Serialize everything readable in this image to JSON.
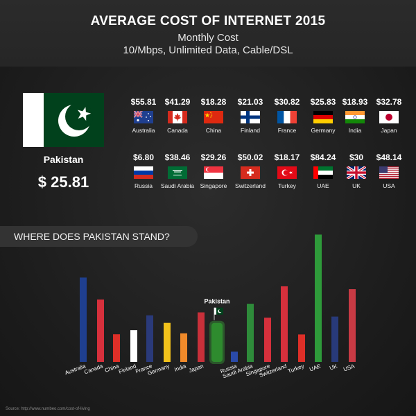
{
  "header": {
    "title": "AVERAGE COST OF INTERNET 2015",
    "subtitle": "Monthly Cost",
    "subtitle2": "10/Mbps, Unlimited Data, Cable/DSL"
  },
  "highlight": {
    "country": "Pakistan",
    "price": "$ 25.81"
  },
  "countries_row1": [
    {
      "name": "Australia",
      "price": "$55.81"
    },
    {
      "name": "Canada",
      "price": "$41.29"
    },
    {
      "name": "China",
      "price": "$18.28"
    },
    {
      "name": "Finland",
      "price": "$21.03"
    },
    {
      "name": "France",
      "price": "$30.82"
    },
    {
      "name": "Germany",
      "price": "$25.83"
    },
    {
      "name": "India",
      "price": "$18.93"
    },
    {
      "name": "Japan",
      "price": "$32.78"
    }
  ],
  "countries_row2": [
    {
      "name": "Russia",
      "price": "$6.80"
    },
    {
      "name": "Saudi Arabia",
      "price": "$38.46"
    },
    {
      "name": "Singapore",
      "price": "$29.26"
    },
    {
      "name": "Switzerland",
      "price": "$50.02"
    },
    {
      "name": "Turkey",
      "price": "$18.17"
    },
    {
      "name": "UAE",
      "price": "$84.24"
    },
    {
      "name": "UK",
      "price": "$30"
    },
    {
      "name": "USA",
      "price": "$48.14"
    }
  ],
  "section_label": "WHERE DOES PAKISTAN STAND?",
  "source": "Source: http://www.numbeo.com/cost-of-living",
  "chart_data": {
    "type": "bar",
    "categories": [
      "Australia",
      "Canada",
      "China",
      "Finland",
      "France",
      "Germany",
      "India",
      "Japan",
      "Pakistan",
      "Russia",
      "Saudi Arabia",
      "Singapore",
      "Switzerland",
      "Turkey",
      "UAE",
      "UK",
      "USA"
    ],
    "values": [
      55.81,
      41.29,
      18.28,
      21.03,
      30.82,
      25.83,
      18.93,
      32.78,
      25.81,
      6.8,
      38.46,
      29.26,
      50.02,
      18.17,
      84.24,
      30,
      48.14
    ],
    "colors": [
      "#1f3f8f",
      "#d6303c",
      "#de2f28",
      "#ffffff",
      "#2a3a7a",
      "#f2c21b",
      "#f08a2a",
      "#c8303a",
      "#2e8b2e",
      "#2a4aa8",
      "#2e8b3a",
      "#d6303c",
      "#d6303c",
      "#de2f28",
      "#2e9a3a",
      "#283a7a",
      "#c83a44"
    ],
    "highlight_label": "Pakistan",
    "ylim": [
      0,
      90
    ]
  }
}
